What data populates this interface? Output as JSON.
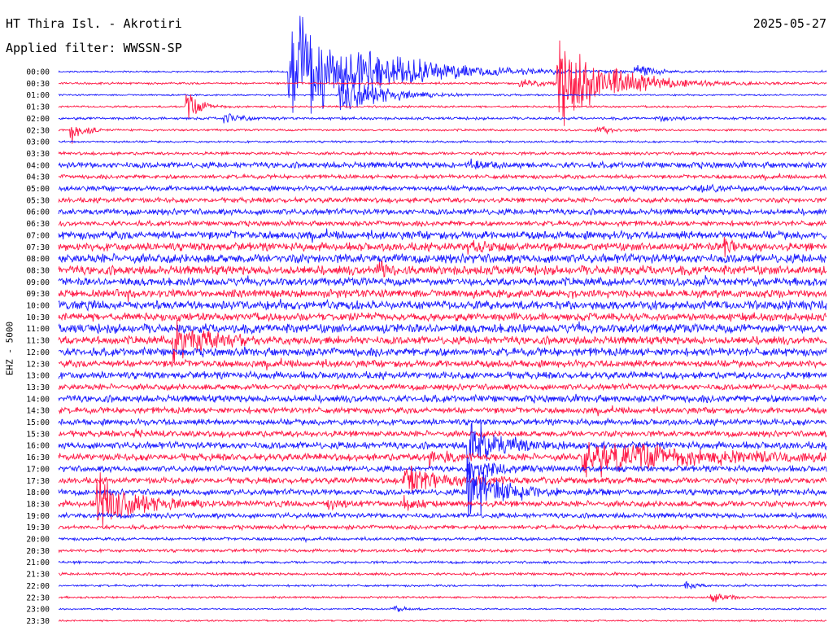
{
  "header": {
    "station": "HT Thira Isl. - Akrotiri",
    "filter": "Applied filter: WWSSN-SP",
    "date": "2025-05-27"
  },
  "channel_label": "EHZ - 5000",
  "colors": {
    "even_trace": "#1a1aff",
    "odd_trace": "#ff1744",
    "background": "#ffffff",
    "text": "#000000"
  },
  "chart_data": {
    "type": "line",
    "title": "HT Thira Isl. - Akrotiri",
    "ylabel": "EHZ - 5000",
    "row_labels": [
      "00:00",
      "00:30",
      "01:00",
      "01:30",
      "02:00",
      "02:30",
      "03:00",
      "03:30",
      "04:00",
      "04:30",
      "05:00",
      "05:30",
      "06:00",
      "06:30",
      "07:00",
      "07:30",
      "08:00",
      "08:30",
      "09:00",
      "09:30",
      "10:00",
      "10:30",
      "11:00",
      "11:30",
      "12:00",
      "12:30",
      "13:00",
      "13:30",
      "14:00",
      "14:30",
      "15:00",
      "15:30",
      "16:00",
      "16:30",
      "17:00",
      "17:30",
      "18:00",
      "18:30",
      "19:00",
      "19:30",
      "20:00",
      "20:30",
      "21:00",
      "21:30",
      "22:00",
      "22:30",
      "23:00",
      "23:30"
    ],
    "row_noise": [
      0.8,
      1.0,
      0.8,
      1.0,
      1.3,
      1.0,
      1.0,
      1.5,
      3.0,
      2.0,
      2.5,
      2.5,
      3.0,
      2.5,
      4.0,
      4.0,
      4.5,
      4.5,
      4.0,
      4.0,
      4.5,
      4.0,
      4.5,
      4.0,
      4.0,
      3.5,
      3.5,
      3.0,
      3.5,
      3.0,
      3.0,
      3.0,
      3.5,
      3.5,
      3.0,
      3.0,
      3.0,
      3.0,
      2.5,
      2.0,
      1.5,
      1.5,
      1.3,
      1.3,
      1.0,
      1.0,
      0.8,
      0.8
    ],
    "row_minutes": 30,
    "events": [
      {
        "row": 0,
        "minute": 9.0,
        "amp": 85,
        "dur": 3.0
      },
      {
        "row": 0,
        "minute": 22.5,
        "amp": 12,
        "dur": 0.6
      },
      {
        "row": 1,
        "minute": 19.5,
        "amp": 60,
        "dur": 2.0
      },
      {
        "row": 1,
        "minute": 18.0,
        "amp": 8,
        "dur": 0.8
      },
      {
        "row": 2,
        "minute": 11.0,
        "amp": 30,
        "dur": 1.5
      },
      {
        "row": 3,
        "minute": 5.0,
        "amp": 22,
        "dur": 0.5
      },
      {
        "row": 4,
        "minute": 6.5,
        "amp": 10,
        "dur": 0.5
      },
      {
        "row": 4,
        "minute": 23.5,
        "amp": 6,
        "dur": 0.5
      },
      {
        "row": 5,
        "minute": 0.5,
        "amp": 18,
        "dur": 0.5
      },
      {
        "row": 5,
        "minute": 21.0,
        "amp": 7,
        "dur": 0.6
      },
      {
        "row": 8,
        "minute": 16.0,
        "amp": 10,
        "dur": 0.5
      },
      {
        "row": 10,
        "minute": 25.0,
        "amp": 10,
        "dur": 0.4
      },
      {
        "row": 15,
        "minute": 16.0,
        "amp": 8,
        "dur": 0.8
      },
      {
        "row": 15,
        "minute": 26.0,
        "amp": 14,
        "dur": 0.3
      },
      {
        "row": 17,
        "minute": 12.5,
        "amp": 12,
        "dur": 0.4
      },
      {
        "row": 23,
        "minute": 4.5,
        "amp": 28,
        "dur": 1.2
      },
      {
        "row": 31,
        "minute": 3.0,
        "amp": 8,
        "dur": 0.4
      },
      {
        "row": 32,
        "minute": 16.0,
        "amp": 45,
        "dur": 1.0
      },
      {
        "row": 33,
        "minute": 20.5,
        "amp": 28,
        "dur": 4.0
      },
      {
        "row": 33,
        "minute": 14.5,
        "amp": 12,
        "dur": 0.5
      },
      {
        "row": 34,
        "minute": 16.0,
        "amp": 16,
        "dur": 1.0
      },
      {
        "row": 35,
        "minute": 13.5,
        "amp": 20,
        "dur": 1.5
      },
      {
        "row": 36,
        "minute": 16.0,
        "amp": 60,
        "dur": 1.0
      },
      {
        "row": 37,
        "minute": 1.5,
        "amp": 45,
        "dur": 1.2
      },
      {
        "row": 37,
        "minute": 10.5,
        "amp": 12,
        "dur": 0.4
      },
      {
        "row": 37,
        "minute": 13.5,
        "amp": 10,
        "dur": 0.5
      },
      {
        "row": 44,
        "minute": 24.5,
        "amp": 8,
        "dur": 0.3
      },
      {
        "row": 45,
        "minute": 25.5,
        "amp": 12,
        "dur": 0.4
      },
      {
        "row": 46,
        "minute": 13.0,
        "amp": 6,
        "dur": 0.4
      }
    ]
  }
}
